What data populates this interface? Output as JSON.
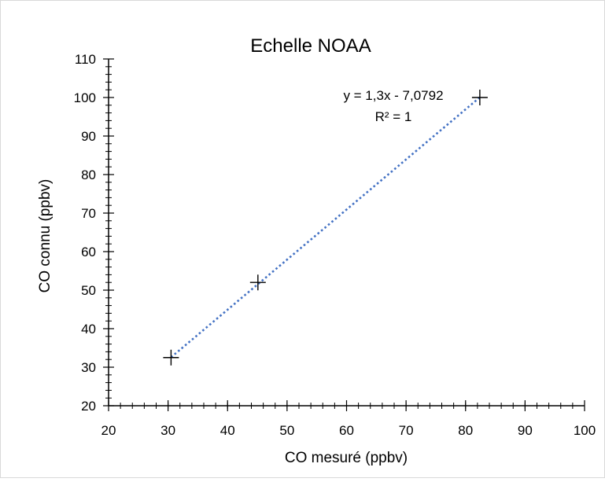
{
  "chart_data": {
    "type": "scatter",
    "title": "Echelle NOAA",
    "xlabel": "CO mesuré (ppbv)",
    "ylabel": "CO connu (ppbv)",
    "xlim": [
      20,
      100
    ],
    "ylim": [
      20,
      110
    ],
    "x_ticks": [
      20,
      30,
      40,
      50,
      60,
      70,
      80,
      90,
      100
    ],
    "y_ticks": [
      20,
      30,
      40,
      50,
      60,
      70,
      80,
      90,
      100,
      110
    ],
    "x_minor_step": 2,
    "y_minor_step": 2,
    "grid": false,
    "legend": "none",
    "points": [
      {
        "x": 30.5,
        "y": 32.5
      },
      {
        "x": 45.1,
        "y": 52.0
      },
      {
        "x": 82.4,
        "y": 100.0
      }
    ],
    "trendline": {
      "type": "linear",
      "slope": 1.3,
      "intercept": -7.0792,
      "x_range": [
        30.5,
        82.4
      ],
      "equation": "y = 1,3x - 7,0792",
      "r2_label": "R² = 1",
      "color": "#4472C4",
      "style": "dotted"
    },
    "marker": {
      "shape": "plus",
      "color": "#000000"
    },
    "axis_color": "#000000",
    "frame_color": "#D9D9D9"
  }
}
